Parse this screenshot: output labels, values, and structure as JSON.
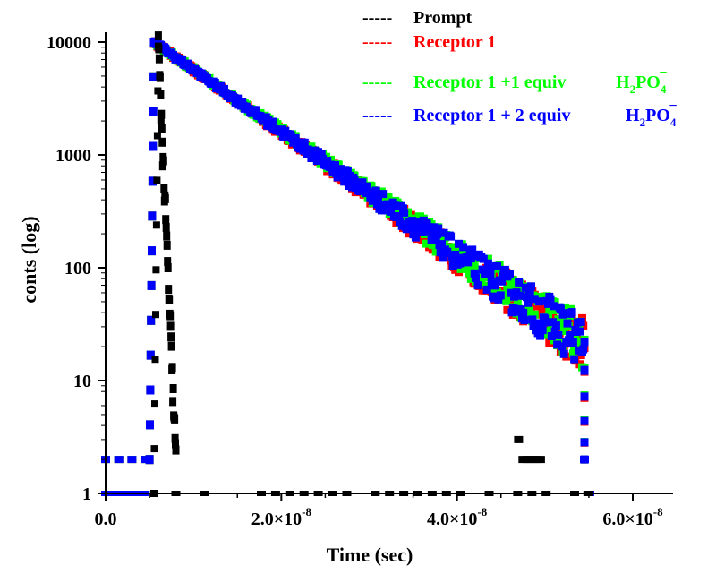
{
  "chart_data": {
    "type": "scatter",
    "xscale": "linear",
    "yscale": "log",
    "xlabel": "Time (sec)",
    "ylabel": "conts (log)",
    "xlim": [
      0,
      6.5e-08
    ],
    "ylim": [
      1,
      12000
    ],
    "x_ticks": [
      {
        "value": 0,
        "mantissa": "0.0",
        "exponent": ""
      },
      {
        "value": 2e-08,
        "mantissa": "2.0×10",
        "exponent": "-8"
      },
      {
        "value": 4e-08,
        "mantissa": "4.0×10",
        "exponent": "-8"
      },
      {
        "value": 6e-08,
        "mantissa": "6.0×10",
        "exponent": "-8"
      }
    ],
    "y_ticks": [
      {
        "value": 1,
        "label": "1"
      },
      {
        "value": 10,
        "label": "10"
      },
      {
        "value": 100,
        "label": "100"
      },
      {
        "value": 1000,
        "label": "1000"
      },
      {
        "value": 10000,
        "label": "10000"
      }
    ],
    "series": [
      {
        "name": "Prompt",
        "color": "#000000",
        "legend": {
          "dashes": "-----",
          "text": "Prompt",
          "anion": false
        },
        "rise_start": 5.5e-09,
        "peak_time": 6e-09,
        "peak": 9200,
        "end_time": 8e-09,
        "end_counts": 2,
        "baseline": 1,
        "baseline_start": 8e-09,
        "baseline_end": 5.5e-08,
        "extra_points": [
          [
            4.7e-08,
            3
          ],
          [
            4.75e-08,
            2
          ],
          [
            4.8e-08,
            2
          ],
          [
            4.85e-08,
            2
          ],
          [
            4.9e-08,
            2
          ],
          [
            4.95e-08,
            2
          ]
        ]
      },
      {
        "name": "Receptor 1",
        "color": "#ff0000",
        "legend": {
          "dashes": "-----",
          "text": "Receptor 1",
          "anion": false
        },
        "rise_start": 5e-09,
        "peak_time": 5.5e-09,
        "peak": 10000,
        "decay_end": 5.45e-08,
        "end_counts": 20,
        "pre_level": 2,
        "baseline": 1,
        "baseline_end": 5.5e-08
      },
      {
        "name": "Receptor 1 +1 equiv H2PO4-",
        "color": "#00ff00",
        "legend": {
          "dashes": "-----",
          "text": "Receptor 1 +1 equiv",
          "anion": true
        },
        "rise_start": 5e-09,
        "peak_time": 5.5e-09,
        "peak": 10000,
        "decay_end": 5.45e-08,
        "end_counts": 22,
        "pre_level": 2,
        "baseline": 1,
        "baseline_end": 5.5e-08
      },
      {
        "name": "Receptor 1 + 2 equiv H2PO4-",
        "color": "#0000ff",
        "legend": {
          "dashes": "-----",
          "text": "Receptor 1 + 2 equiv",
          "anion": true
        },
        "rise_start": 5e-09,
        "peak_time": 5.5e-09,
        "peak": 10000,
        "decay_end": 5.45e-08,
        "end_counts": 21,
        "pre_level": 2,
        "baseline": 1,
        "baseline_end": 5.5e-08
      }
    ],
    "anion": {
      "h": "H",
      "h_sub": "2",
      "po": "PO",
      "po_sub": "4",
      "sup": "−"
    }
  }
}
